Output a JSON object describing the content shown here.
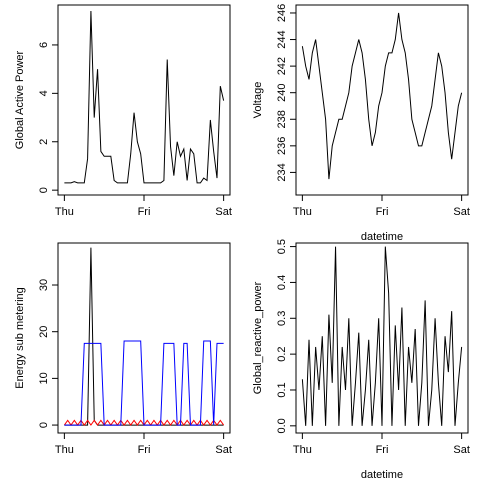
{
  "chart_data": [
    {
      "type": "line",
      "ylabel": "Global Active Power",
      "x": [
        0,
        1,
        2,
        3,
        4,
        5,
        6,
        7,
        8,
        9,
        10,
        11,
        12,
        13,
        14,
        15,
        16,
        17,
        18,
        19,
        20,
        21,
        22,
        23,
        24,
        25,
        26,
        27,
        28,
        29,
        30,
        31,
        32,
        33,
        34,
        35,
        36,
        37,
        38,
        39,
        40,
        41,
        42,
        43,
        44,
        45,
        46,
        47,
        48
      ],
      "series": [
        {
          "color": "#000000",
          "values": [
            0.3,
            0.3,
            0.3,
            0.35,
            0.3,
            0.3,
            0.3,
            1.3,
            7.4,
            3.0,
            5.0,
            1.6,
            1.4,
            1.4,
            1.4,
            0.4,
            0.3,
            0.3,
            0.3,
            0.3,
            1.5,
            3.2,
            2.0,
            1.5,
            0.3,
            0.3,
            0.3,
            0.3,
            0.3,
            0.3,
            0.4,
            5.4,
            1.8,
            0.6,
            2.0,
            1.4,
            1.7,
            0.4,
            1.7,
            1.5,
            0.3,
            0.3,
            0.5,
            0.4,
            2.9,
            1.6,
            0.5,
            4.3,
            3.7
          ]
        }
      ],
      "xlim": [
        -1.92,
        49.92
      ],
      "xticks": [
        {
          "value": 0,
          "label": "Thu"
        },
        {
          "value": 24,
          "label": "Fri"
        },
        {
          "value": 48,
          "label": "Sat"
        }
      ],
      "ylim": [
        -0.2,
        7.65
      ],
      "yticks": [
        0,
        2,
        4,
        6
      ]
    },
    {
      "type": "line",
      "xlabel": "datetime",
      "ylabel": "Voltage",
      "x": [
        0,
        1,
        2,
        3,
        4,
        5,
        6,
        7,
        8,
        9,
        10,
        11,
        12,
        13,
        14,
        15,
        16,
        17,
        18,
        19,
        20,
        21,
        22,
        23,
        24,
        25,
        26,
        27,
        28,
        29,
        30,
        31,
        32,
        33,
        34,
        35,
        36,
        37,
        38,
        39,
        40,
        41,
        42,
        43,
        44,
        45,
        46,
        47,
        48
      ],
      "series": [
        {
          "color": "#000000",
          "values": [
            243.5,
            242,
            241,
            243,
            244,
            242,
            240,
            238,
            233.5,
            236,
            237,
            238,
            238,
            239,
            240,
            242,
            243,
            244,
            243,
            241,
            238,
            236,
            237,
            239,
            240,
            242,
            243,
            243,
            244,
            246,
            244,
            243,
            241,
            238,
            237,
            236,
            236,
            237,
            238,
            239,
            241,
            243,
            242,
            240,
            237,
            235,
            237,
            239,
            240
          ]
        }
      ],
      "xlim": [
        -1.92,
        49.92
      ],
      "xticks": [
        {
          "value": 0,
          "label": "Thu"
        },
        {
          "value": 24,
          "label": "Fri"
        },
        {
          "value": 48,
          "label": "Sat"
        }
      ],
      "ylim": [
        232.3,
        246.6
      ],
      "yticks": [
        234,
        236,
        238,
        240,
        242,
        244,
        246
      ]
    },
    {
      "type": "line",
      "ylabel": "Energy sub metering",
      "x": [
        0,
        1,
        2,
        3,
        4,
        5,
        6,
        7,
        8,
        9,
        10,
        11,
        12,
        13,
        14,
        15,
        16,
        17,
        18,
        19,
        20,
        21,
        22,
        23,
        24,
        25,
        26,
        27,
        28,
        29,
        30,
        31,
        32,
        33,
        34,
        35,
        36,
        37,
        38,
        39,
        40,
        41,
        42,
        43,
        44,
        45,
        46,
        47,
        48
      ],
      "series": [
        {
          "color": "#000000",
          "values": [
            0,
            0,
            0,
            0,
            0,
            0,
            0,
            0,
            38,
            1,
            0,
            0,
            0,
            0,
            0,
            0,
            0,
            0,
            0,
            0,
            0,
            0,
            0,
            0,
            0,
            0,
            0,
            0,
            0,
            0,
            0,
            0,
            0,
            0,
            0,
            0,
            0,
            0,
            0,
            0,
            0,
            0,
            0,
            0,
            0,
            0,
            0,
            0,
            0
          ]
        },
        {
          "color": "#ff0000",
          "values": [
            0,
            1,
            0,
            1,
            0,
            1,
            0,
            1,
            0,
            1,
            0,
            1,
            0,
            1,
            0,
            1,
            0,
            1,
            0,
            1,
            0,
            1,
            0,
            1,
            0,
            1,
            0,
            1,
            0,
            1,
            0,
            1,
            0,
            1,
            0,
            1,
            0,
            1,
            0,
            1,
            0,
            1,
            0,
            1,
            0,
            1,
            0,
            1,
            0
          ]
        },
        {
          "color": "#0000ff",
          "values": [
            0,
            0,
            0,
            0,
            0,
            0,
            17.5,
            17.5,
            17.5,
            17.5,
            17.5,
            17.5,
            0,
            0,
            0,
            0,
            0,
            0,
            18,
            18,
            18,
            18,
            18,
            18,
            0,
            0,
            0,
            0,
            0,
            0,
            17.5,
            17.5,
            17.5,
            17.5,
            0,
            0,
            17.5,
            17.5,
            0,
            0,
            0,
            0,
            18,
            18,
            18,
            0,
            17.5,
            17.5,
            17.5
          ]
        }
      ],
      "xlim": [
        -1.92,
        49.92
      ],
      "xticks": [
        {
          "value": 0,
          "label": "Thu"
        },
        {
          "value": 24,
          "label": "Fri"
        },
        {
          "value": 48,
          "label": "Sat"
        }
      ],
      "ylim": [
        -1.7,
        39
      ],
      "yticks": [
        0,
        10,
        20,
        30
      ]
    },
    {
      "type": "line",
      "xlabel": "datetime",
      "ylabel": "Global_reactive_power",
      "x": [
        0,
        1,
        2,
        3,
        4,
        5,
        6,
        7,
        8,
        9,
        10,
        11,
        12,
        13,
        14,
        15,
        16,
        17,
        18,
        19,
        20,
        21,
        22,
        23,
        24,
        25,
        26,
        27,
        28,
        29,
        30,
        31,
        32,
        33,
        34,
        35,
        36,
        37,
        38,
        39,
        40,
        41,
        42,
        43,
        44,
        45,
        46,
        47,
        48
      ],
      "series": [
        {
          "color": "#000000",
          "values": [
            0.13,
            0,
            0.24,
            0,
            0.22,
            0.1,
            0.25,
            0,
            0.31,
            0.12,
            0.5,
            0,
            0.22,
            0.1,
            0.3,
            0,
            0.12,
            0.26,
            0,
            0.1,
            0.24,
            0,
            0.12,
            0.3,
            0,
            0.5,
            0.37,
            0,
            0.28,
            0.1,
            0.33,
            0,
            0.22,
            0.12,
            0.27,
            0,
            0.12,
            0.35,
            0,
            0.1,
            0.3,
            0.12,
            0,
            0.25,
            0.15,
            0.32,
            0,
            0.12,
            0.22
          ]
        }
      ],
      "xlim": [
        -1.92,
        49.92
      ],
      "xticks": [
        {
          "value": 0,
          "label": "Thu"
        },
        {
          "value": 24,
          "label": "Fri"
        },
        {
          "value": 48,
          "label": "Sat"
        }
      ],
      "ylim": [
        -0.02,
        0.51
      ],
      "yticks": [
        {
          "value": 0,
          "label": "0.0"
        },
        0.1,
        0.2,
        0.3,
        0.4,
        0.5
      ]
    }
  ]
}
